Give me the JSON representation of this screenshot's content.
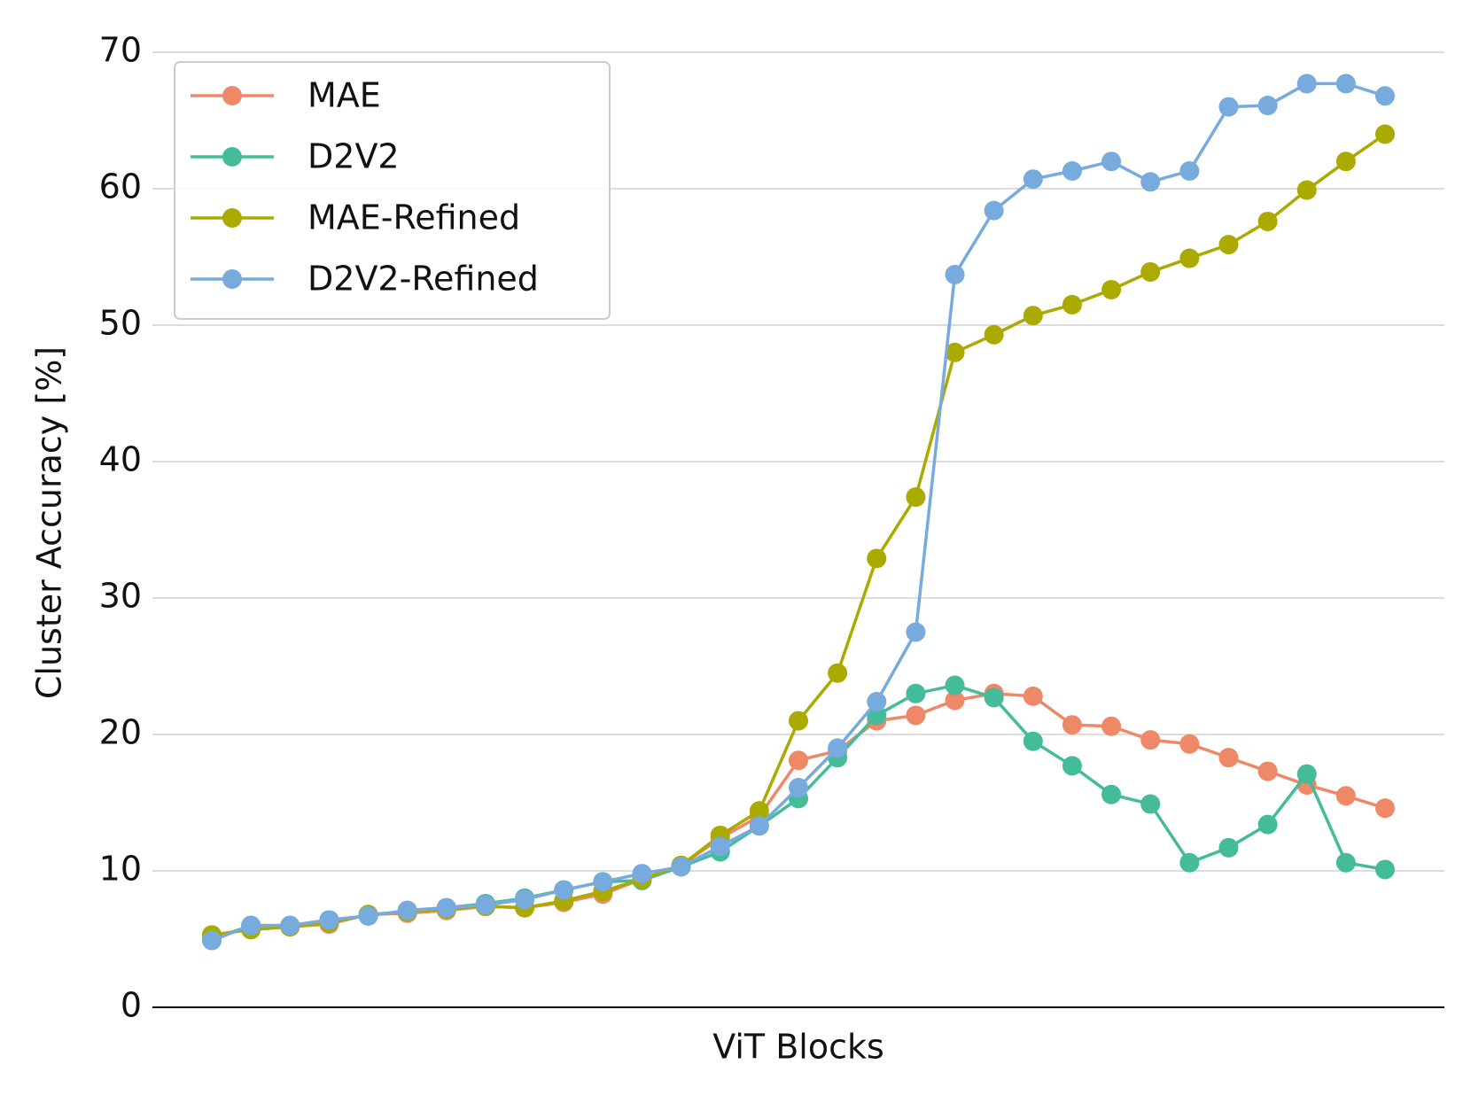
{
  "chart_data": {
    "type": "line",
    "xlabel": "ViT Blocks",
    "ylabel": "Cluster Accuracy [%]",
    "categories": [
      null,
      null,
      null,
      null,
      null,
      null,
      null,
      null,
      null,
      null,
      null,
      null,
      null,
      null,
      null,
      null,
      null,
      null,
      null,
      null,
      null,
      null,
      null,
      null,
      null,
      null,
      null,
      null,
      null,
      null,
      null
    ],
    "series": [
      {
        "name": "MAE",
        "color": "#ee8866",
        "values": [
          5.3,
          5.7,
          5.9,
          6.1,
          6.8,
          6.9,
          7.1,
          7.4,
          7.3,
          7.7,
          8.3,
          9.4,
          10.4,
          12.4,
          14.0,
          18.1,
          18.8,
          21.0,
          21.4,
          22.5,
          23.0,
          22.8,
          20.7,
          20.6,
          19.6,
          19.3,
          18.3,
          17.3,
          16.3,
          15.5,
          14.6
        ]
      },
      {
        "name": "D2V2",
        "color": "#44bb99",
        "values": [
          5.0,
          6.0,
          6.0,
          6.4,
          6.7,
          7.1,
          7.3,
          7.6,
          8.0,
          8.6,
          9.2,
          9.3,
          10.3,
          11.4,
          13.3,
          15.3,
          18.3,
          21.4,
          23.0,
          23.6,
          22.7,
          19.5,
          17.7,
          15.6,
          14.9,
          10.6,
          11.7,
          13.4,
          17.1,
          10.6,
          10.1
        ]
      },
      {
        "name": "MAE-Refined",
        "color": "#aaaa00",
        "values": [
          5.3,
          5.7,
          5.9,
          6.2,
          6.8,
          7.0,
          7.2,
          7.4,
          7.3,
          7.8,
          8.5,
          9.4,
          10.4,
          12.6,
          14.4,
          21.0,
          24.5,
          32.9,
          37.4,
          48.0,
          49.3,
          50.7,
          51.5,
          52.6,
          53.9,
          54.9,
          55.9,
          57.6,
          59.9,
          62.0,
          64.0
        ]
      },
      {
        "name": "D2V2-Refined",
        "color": "#77aadd",
        "values": [
          4.9,
          6.0,
          6.0,
          6.4,
          6.7,
          7.1,
          7.3,
          7.5,
          7.9,
          8.6,
          9.2,
          9.8,
          10.3,
          11.8,
          13.3,
          16.1,
          19.0,
          22.4,
          27.5,
          53.7,
          58.4,
          60.7,
          61.3,
          62.0,
          60.5,
          61.3,
          66.0,
          66.1,
          67.7,
          67.7,
          66.8
        ]
      }
    ],
    "ylim": [
      0,
      70
    ],
    "yticks": [
      0,
      10,
      20,
      30,
      40,
      50,
      60,
      70
    ],
    "grid": true,
    "legend": "upper left"
  }
}
